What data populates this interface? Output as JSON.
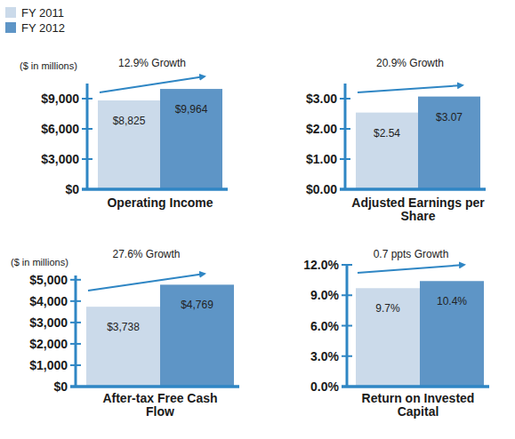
{
  "chart_data": [
    {
      "type": "bar",
      "title": "Operating Income",
      "y_label": "($ in millions)",
      "annotations": [
        "12.9% Growth"
      ],
      "categories": [
        null
      ],
      "legend": "top-left",
      "data_labels": true,
      "series": [
        {
          "name": "FY 2011",
          "color": "#cbdaea",
          "values": [
            8825
          ],
          "value_labels": [
            "$8,825"
          ]
        },
        {
          "name": "FY 2012",
          "color": "#5e95c6",
          "values": [
            9964
          ],
          "value_labels": [
            "$9,964"
          ]
        }
      ],
      "ylim": [
        0,
        10500
      ],
      "yticks": [
        {
          "value": 0,
          "label": "$0"
        },
        {
          "value": 3000,
          "label": "$3,000"
        },
        {
          "value": 6000,
          "label": "$6,000"
        },
        {
          "value": 9000,
          "label": "$9,000"
        }
      ]
    },
    {
      "type": "bar",
      "title": "Adjusted Earnings per Share",
      "annotations": [
        "20.9% Growth"
      ],
      "categories": [
        null
      ],
      "data_labels": true,
      "series": [
        {
          "color": "#cbdaea",
          "values": [
            2.54
          ],
          "value_labels": [
            "$2.54"
          ]
        },
        {
          "color": "#5e95c6",
          "values": [
            3.07
          ],
          "value_labels": [
            "$3.07"
          ]
        }
      ],
      "ylim": [
        0,
        3.5
      ],
      "yticks": [
        {
          "value": 0,
          "label": "$0.00"
        },
        {
          "value": 1,
          "label": "$1.00"
        },
        {
          "value": 2,
          "label": "$2.00"
        },
        {
          "value": 3,
          "label": "$3.00"
        }
      ]
    },
    {
      "type": "bar",
      "title": "After-tax Free Cash Flow",
      "y_label": "($ in millions)",
      "annotations": [
        "27.6% Growth"
      ],
      "categories": [
        null
      ],
      "data_labels": true,
      "series": [
        {
          "color": "#cbdaea",
          "values": [
            3738
          ],
          "value_labels": [
            "$3,738"
          ]
        },
        {
          "color": "#5e95c6",
          "values": [
            4769
          ],
          "value_labels": [
            "$4,769"
          ]
        }
      ],
      "ylim": [
        0,
        5200
      ],
      "yticks": [
        {
          "value": 0,
          "label": "$0"
        },
        {
          "value": 1000,
          "label": "$1,000"
        },
        {
          "value": 2000,
          "label": "$2,000"
        },
        {
          "value": 3000,
          "label": "$3,000"
        },
        {
          "value": 4000,
          "label": "$4,000"
        },
        {
          "value": 5000,
          "label": "$5,000"
        }
      ]
    },
    {
      "type": "bar",
      "title": "Return on Invested Capital",
      "annotations": [
        "0.7 ppts Growth"
      ],
      "categories": [
        null
      ],
      "data_labels": true,
      "series": [
        {
          "color": "#cbdaea",
          "values": [
            9.7
          ],
          "value_labels": [
            "9.7%"
          ]
        },
        {
          "color": "#5e95c6",
          "values": [
            10.4
          ],
          "value_labels": [
            "10.4%"
          ]
        }
      ],
      "ylim": [
        0,
        12
      ],
      "yticks": [
        {
          "value": 0,
          "label": "0.0%"
        },
        {
          "value": 3,
          "label": "3.0%"
        },
        {
          "value": 6,
          "label": "6.0%"
        },
        {
          "value": 9,
          "label": "9.0%"
        },
        {
          "value": 12,
          "label": "12.0%"
        }
      ]
    }
  ]
}
